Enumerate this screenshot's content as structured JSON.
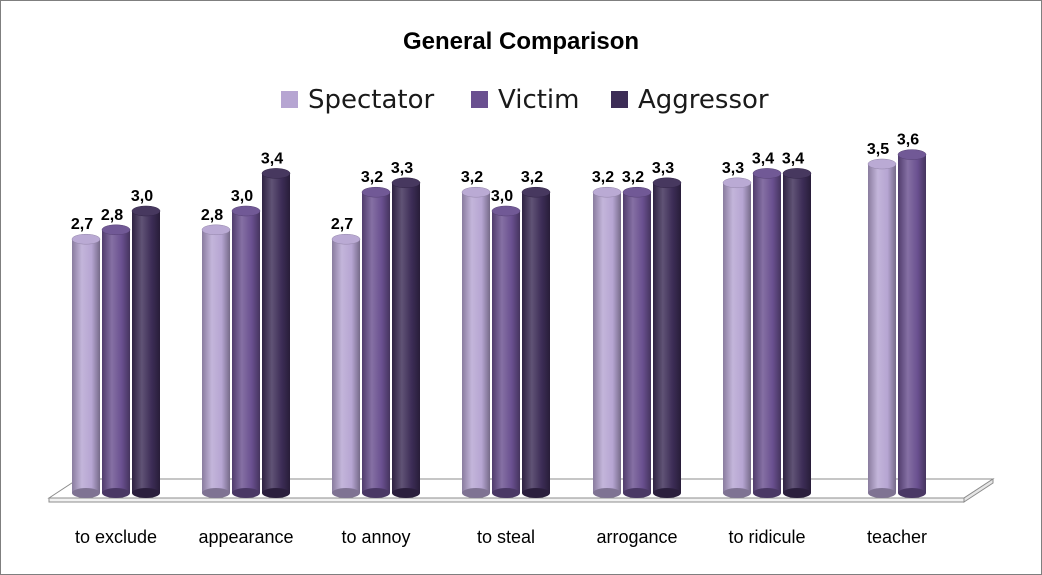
{
  "chart_data": {
    "type": "bar",
    "title": "General Comparison",
    "categories": [
      "to exclude",
      "appearance",
      "to annoy",
      "to steal",
      "arrogance",
      "to ridicule",
      "teacher"
    ],
    "series": [
      {
        "name": "Spectator",
        "color": "#b6a5d2",
        "values": [
          2.7,
          2.8,
          2.7,
          3.2,
          3.2,
          3.3,
          3.5
        ]
      },
      {
        "name": "Victim",
        "color": "#6a5090",
        "values": [
          2.8,
          3.0,
          3.2,
          3.0,
          3.2,
          3.4,
          3.6
        ]
      },
      {
        "name": "Aggressor",
        "color": "#3d2d57",
        "values": [
          3.0,
          3.4,
          3.3,
          3.2,
          3.3,
          3.4,
          null
        ]
      }
    ],
    "value_labels": [
      [
        "2,7",
        "2,8",
        "2,7",
        "3,2",
        "3,2",
        "3,3",
        "3,5"
      ],
      [
        "2,8",
        "3,0",
        "3,2",
        "3,0",
        "3,2",
        "3,4",
        "3,6"
      ],
      [
        "3,0",
        "3,4",
        "3,3",
        "3,2",
        "3,3",
        "3,4",
        ""
      ]
    ],
    "xlabel": "",
    "ylabel": "",
    "ylim": [
      0,
      3.8
    ],
    "grid": false,
    "legend": "top-center"
  }
}
